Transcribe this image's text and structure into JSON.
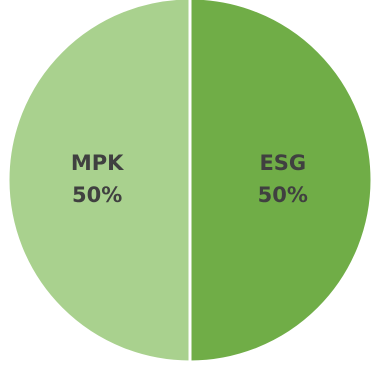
{
  "chart_data": {
    "type": "pie",
    "title": "",
    "slices": [
      {
        "label": "ESG",
        "value": 50,
        "percent_label": "50%",
        "color": "#70ad47"
      },
      {
        "label": "MPK",
        "value": 50,
        "percent_label": "50%",
        "color": "#a9d18e"
      }
    ],
    "start_angle_deg": 0,
    "direction": "clockwise",
    "separator_color": "#ffffff",
    "legend": "none"
  }
}
